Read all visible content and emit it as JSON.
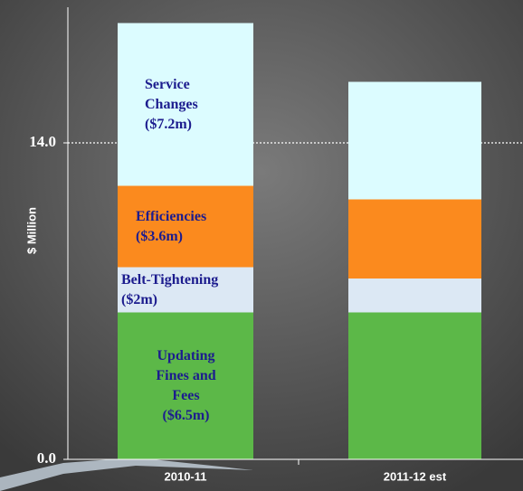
{
  "chart_data": {
    "type": "stacked-bar",
    "y_label": "$ Million",
    "categories": [
      "2010-11",
      "2011-12 est"
    ],
    "series": [
      {
        "name": "Updating Fines and Fees",
        "color": "#5cb848",
        "values": [
          6.5,
          6.5
        ],
        "value_labels": [
          "($6.5m)",
          null
        ]
      },
      {
        "name": "Belt-Tightening",
        "color": "#dce8f4",
        "values": [
          2,
          1.5
        ],
        "value_labels": [
          "($2m)",
          null
        ]
      },
      {
        "name": "Efficiencies",
        "color": "#fb8a1e",
        "values": [
          3.6,
          3.5
        ],
        "value_labels": [
          "($3.6m)",
          null
        ]
      },
      {
        "name": "Service Changes",
        "color": "#dcfcff",
        "values": [
          7.2,
          5.2
        ],
        "value_labels": [
          "($7.2m)",
          null
        ]
      }
    ],
    "ylim": [
      0,
      20
    ],
    "yticks": [
      {
        "value": 0,
        "label": "0.0"
      },
      {
        "value": 14,
        "label": "14.0"
      }
    ],
    "grid_ticks": [
      14
    ]
  }
}
